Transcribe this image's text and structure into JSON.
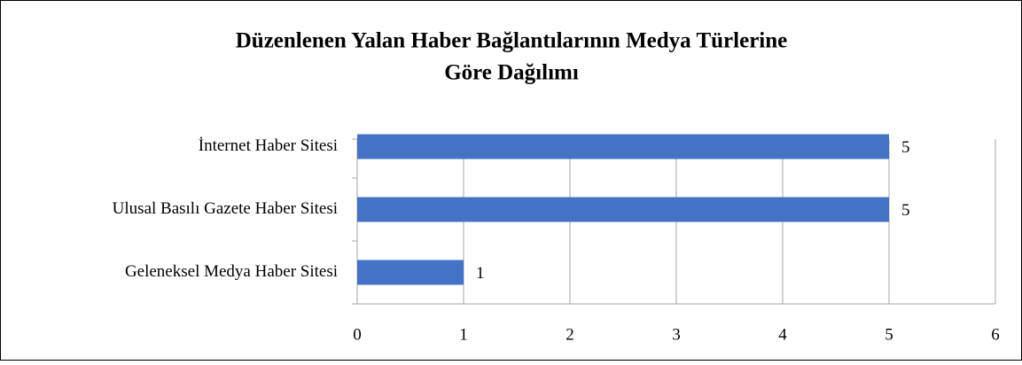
{
  "chart_data": {
    "type": "bar",
    "orientation": "horizontal",
    "title": [
      "Düzenlenen Yalan Haber Bağlantılarının Medya Türlerine",
      "Göre Dağılımı"
    ],
    "categories": [
      "İnternet Haber Sitesi",
      "Ulusal Basılı Gazete Haber Sitesi",
      "Geleneksel Medya Haber Sitesi"
    ],
    "values": [
      5,
      5,
      1
    ],
    "color": "#4472c4",
    "xlim": [
      0,
      6
    ],
    "xticks": [
      0,
      1,
      2,
      3,
      4,
      5,
      6
    ],
    "grid": true
  }
}
